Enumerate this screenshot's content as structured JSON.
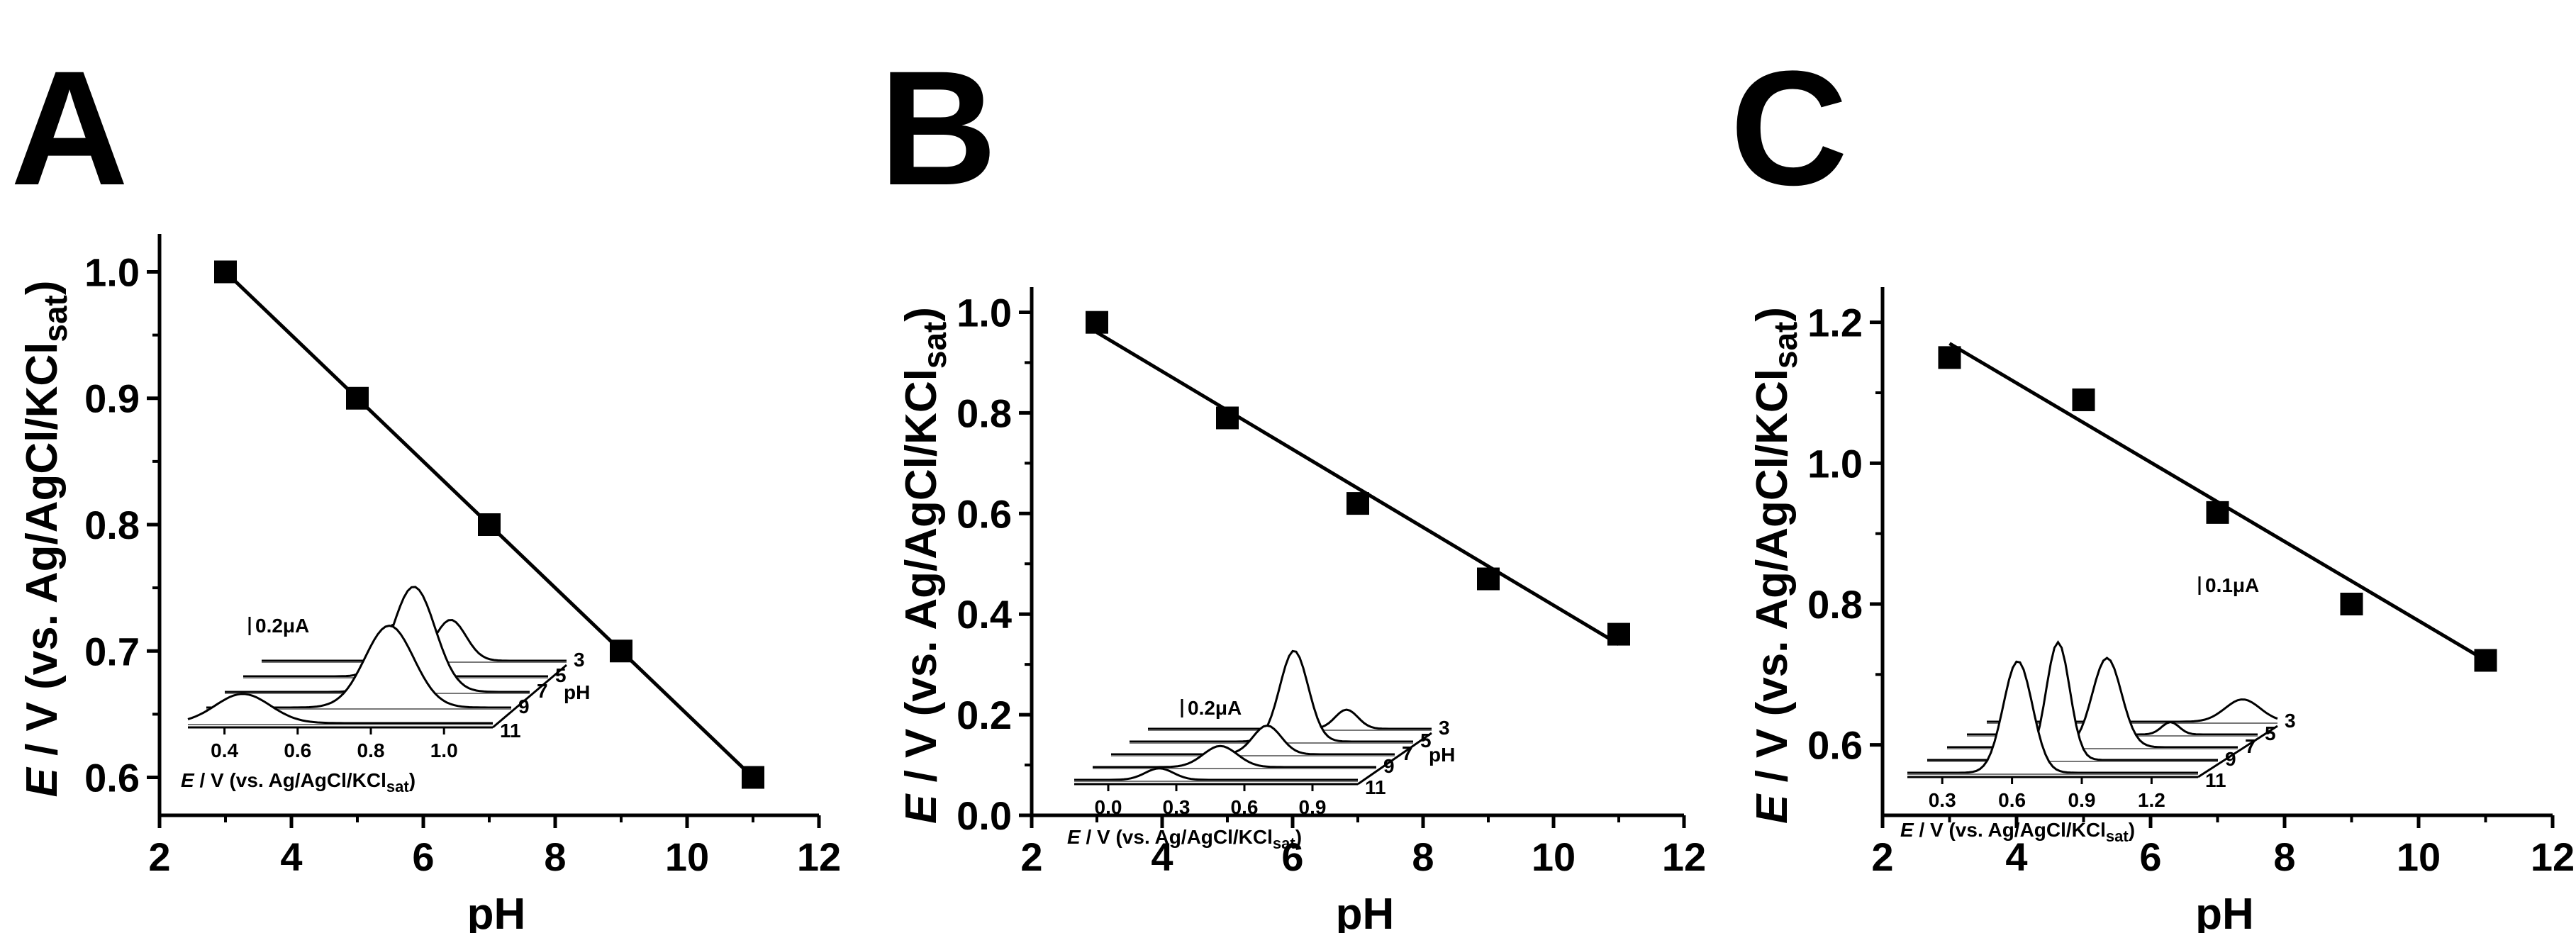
{
  "chart_data": [
    {
      "type": "scatter",
      "panel_label": "A",
      "xlabel": "pH",
      "ylabel": "E / V (vs. Ag/AgCl/KCl",
      "ylabel_sub": "sat",
      "ylabel_close": ")",
      "xlim": [
        2,
        12
      ],
      "ylim": [
        0.57,
        1.03
      ],
      "xticks": [
        "2",
        "4",
        "6",
        "8",
        "10",
        "12"
      ],
      "yticks": [
        "0.6",
        "0.7",
        "0.8",
        "0.9",
        "1.0"
      ],
      "series": [
        {
          "points": [
            [
              3,
              1.0
            ],
            [
              5,
              0.9
            ],
            [
              7,
              0.8
            ],
            [
              9,
              0.7
            ],
            [
              11,
              0.6
            ]
          ],
          "fit": [
            [
              3,
              1.0
            ],
            [
              11,
              0.6
            ]
          ]
        }
      ],
      "inset": {
        "scale_label": "0.2μA",
        "xticks": [
          "0.4",
          "0.6",
          "0.8",
          "1.0"
        ],
        "ph_labels": [
          "3",
          "5",
          "7",
          "9",
          "11"
        ],
        "ph_axis_label": "pH",
        "xlabel": "E / V (vs. Ag/AgCl/KCl",
        "xlabel_sub": "sat",
        "xlabel_close": ")"
      }
    },
    {
      "type": "scatter",
      "panel_label": "B",
      "xlabel": "pH",
      "ylabel": "E / V (vs. Ag/AgCl/KCl",
      "ylabel_sub": "sat",
      "ylabel_close": ")",
      "xlim": [
        2,
        12
      ],
      "ylim": [
        0.0,
        1.05
      ],
      "xticks": [
        "2",
        "4",
        "6",
        "8",
        "10",
        "12"
      ],
      "yticks": [
        "0.0",
        "0.2",
        "0.4",
        "0.6",
        "0.8",
        "1.0"
      ],
      "series": [
        {
          "points": [
            [
              3,
              0.98
            ],
            [
              5,
              0.79
            ],
            [
              7,
              0.62
            ],
            [
              9,
              0.47
            ],
            [
              11,
              0.36
            ]
          ],
          "fit": [
            [
              3,
              0.96
            ],
            [
              11,
              0.34
            ]
          ]
        }
      ],
      "inset": {
        "scale_label": "0.2μA",
        "xticks": [
          "0.0",
          "0.3",
          "0.6",
          "0.9"
        ],
        "ph_labels": [
          "3",
          "5",
          "7",
          "9",
          "11"
        ],
        "ph_axis_label": "pH",
        "xlabel": "E / V (vs. Ag/AgCl/KCl",
        "xlabel_sub": "sat",
        "xlabel_close": ")"
      }
    },
    {
      "type": "scatter",
      "panel_label": "C",
      "xlabel": "pH",
      "ylabel": "E / V (vs. Ag/AgCl/KCl",
      "ylabel_sub": "sat",
      "ylabel_close": ")",
      "xlim": [
        2,
        12
      ],
      "ylim": [
        0.5,
        1.25
      ],
      "xticks": [
        "2",
        "4",
        "6",
        "8",
        "10",
        "12"
      ],
      "yticks": [
        "0.6",
        "0.8",
        "1.0",
        "1.2"
      ],
      "series": [
        {
          "points": [
            [
              3,
              1.15
            ],
            [
              5,
              1.09
            ],
            [
              7,
              0.93
            ],
            [
              9,
              0.8
            ],
            [
              11,
              0.72
            ]
          ],
          "fit": [
            [
              3,
              1.17
            ],
            [
              11,
              0.72
            ]
          ]
        }
      ],
      "inset": {
        "scale_label": "0.1μA",
        "xticks": [
          "0.3",
          "0.6",
          "0.9",
          "1.2"
        ],
        "ph_labels": [
          "3",
          "5",
          "7",
          "9",
          "11"
        ],
        "ph_axis_label": "",
        "xlabel": "E / V (vs. Ag/AgCl/KCl",
        "xlabel_sub": "sat",
        "xlabel_close": ")"
      }
    }
  ]
}
